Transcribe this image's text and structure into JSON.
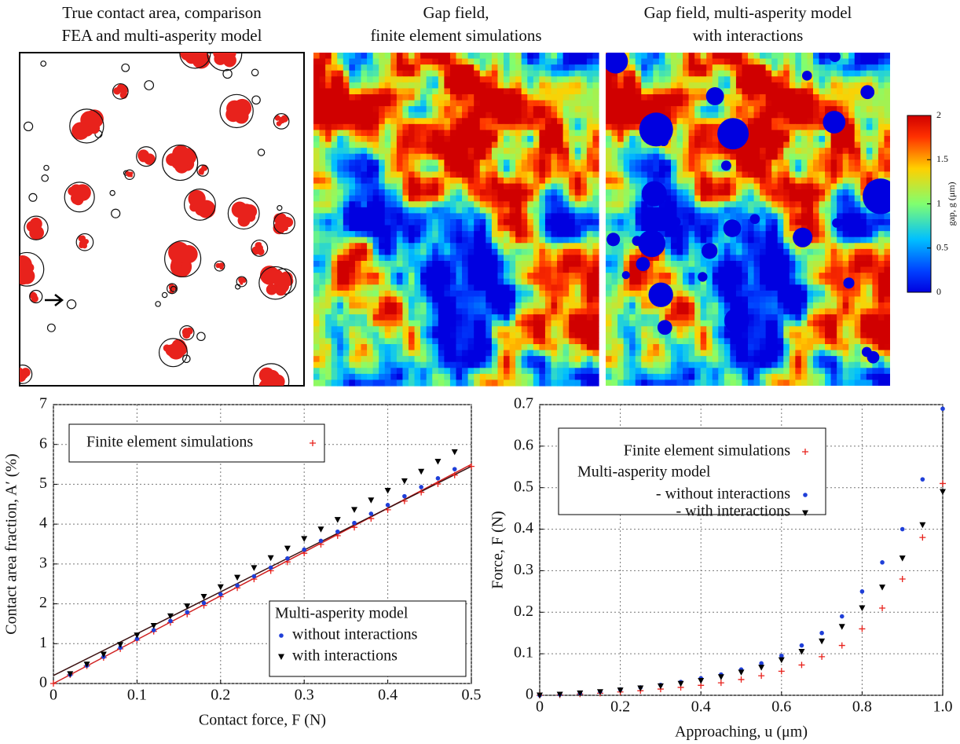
{
  "chart_data": [
    {
      "type": "contact-map",
      "title": [
        "True contact area, comparison",
        "FEA and multi-asperity model"
      ]
    },
    {
      "type": "heatmap",
      "title": [
        "Gap field,",
        "finite element simulations"
      ]
    },
    {
      "type": "heatmap",
      "title": [
        "Gap field, multi-asperity model",
        "with interactions"
      ],
      "discs": true
    },
    {
      "type": "colorbar",
      "ylabel": "gap, g (μm)",
      "ylim": [
        0,
        2
      ],
      "yticks": [
        0,
        0.5,
        1,
        1.5,
        2
      ]
    },
    {
      "type": "scatter",
      "xlabel": "Contact force, F (N)",
      "ylabel": "Contact area fraction, A′ (%)",
      "xlim": [
        0,
        0.5
      ],
      "xticks": [
        0,
        0.1,
        0.2,
        0.3,
        0.4,
        0.5
      ],
      "ylim": [
        0,
        7
      ],
      "yticks": [
        0,
        1,
        2,
        3,
        4,
        5,
        6,
        7
      ],
      "grid": true,
      "legend_title": "Multi-asperity model",
      "series": [
        {
          "marker": "line",
          "color": "#d02020",
          "x": [
            0,
            0.5
          ],
          "values": [
            0,
            5.5
          ]
        },
        {
          "marker": "line",
          "color": "#3a1010",
          "x": [
            0,
            0.5
          ],
          "values": [
            0.2,
            5.45
          ]
        },
        {
          "name": "Finite element simulations",
          "marker": "plus",
          "color": "#e8221c",
          "legend": "upper left",
          "x": [
            0,
            0.02,
            0.04,
            0.06,
            0.08,
            0.1,
            0.12,
            0.14,
            0.16,
            0.18,
            0.2,
            0.22,
            0.24,
            0.26,
            0.28,
            0.3,
            0.32,
            0.34,
            0.36,
            0.38,
            0.4,
            0.42,
            0.44,
            0.46,
            0.48,
            0.5
          ],
          "values": [
            0,
            0.22,
            0.44,
            0.65,
            0.87,
            1.09,
            1.31,
            1.53,
            1.74,
            1.96,
            2.18,
            2.4,
            2.62,
            2.83,
            3.05,
            3.27,
            3.49,
            3.71,
            3.92,
            4.14,
            4.36,
            4.58,
            4.8,
            5.01,
            5.23,
            5.45
          ]
        },
        {
          "name": "without interactions",
          "marker": "dot",
          "color": "#1f3fd8",
          "legend": "lower right",
          "x": [
            0.02,
            0.04,
            0.06,
            0.08,
            0.1,
            0.12,
            0.14,
            0.16,
            0.18,
            0.2,
            0.22,
            0.24,
            0.26,
            0.28,
            0.3,
            0.32,
            0.34,
            0.36,
            0.38,
            0.4,
            0.42,
            0.44,
            0.46,
            0.48
          ],
          "values": [
            0.22,
            0.45,
            0.67,
            0.9,
            1.12,
            1.34,
            1.57,
            1.79,
            2.02,
            2.24,
            2.46,
            2.69,
            2.91,
            3.14,
            3.36,
            3.58,
            3.81,
            4.03,
            4.26,
            4.48,
            4.7,
            4.93,
            5.15,
            5.38
          ]
        },
        {
          "name": "with interactions",
          "marker": "triangle",
          "color": "#000000",
          "legend": "lower right",
          "x": [
            0.02,
            0.04,
            0.06,
            0.08,
            0.1,
            0.12,
            0.14,
            0.16,
            0.18,
            0.2,
            0.22,
            0.24,
            0.26,
            0.28,
            0.3,
            0.32,
            0.34,
            0.36,
            0.38,
            0.4,
            0.42,
            0.44,
            0.46,
            0.48
          ],
          "values": [
            0.24,
            0.48,
            0.73,
            0.97,
            1.21,
            1.45,
            1.69,
            1.94,
            2.18,
            2.42,
            2.66,
            2.9,
            3.15,
            3.39,
            3.63,
            3.87,
            4.11,
            4.36,
            4.6,
            4.84,
            5.08,
            5.32,
            5.57,
            5.81
          ]
        }
      ]
    },
    {
      "type": "scatter",
      "xlabel": "Approaching, u (μm)",
      "ylabel": "Force, F (N)",
      "xlim": [
        0,
        1
      ],
      "xticks": [
        0,
        0.2,
        0.4,
        0.6,
        0.8,
        {
          "value": 1,
          "label": "1.0"
        }
      ],
      "ylim": [
        0,
        0.7
      ],
      "yticks": [
        0,
        0.1,
        0.2,
        0.3,
        0.4,
        0.5,
        0.6,
        0.7
      ],
      "grid": true,
      "legend_title": "Multi-asperity model",
      "series": [
        {
          "name": "Finite element simulations",
          "marker": "plus",
          "color": "#e8221c",
          "legend": "upper left",
          "x": [
            0,
            0.05,
            0.1,
            0.15,
            0.2,
            0.25,
            0.3,
            0.35,
            0.4,
            0.45,
            0.5,
            0.55,
            0.6,
            0.65,
            0.7,
            0.75,
            0.8,
            0.85,
            0.9,
            0.95,
            1
          ],
          "values": [
            0,
            0.001,
            0.003,
            0.005,
            0.008,
            0.011,
            0.015,
            0.019,
            0.024,
            0.03,
            0.038,
            0.047,
            0.058,
            0.073,
            0.093,
            0.12,
            0.16,
            0.21,
            0.28,
            0.38,
            0.51
          ]
        },
        {
          "name": "- without interactions",
          "marker": "dot",
          "color": "#1f3fd8",
          "legend": "upper left",
          "x": [
            0,
            0.05,
            0.1,
            0.15,
            0.2,
            0.25,
            0.3,
            0.35,
            0.4,
            0.45,
            0.5,
            0.55,
            0.6,
            0.65,
            0.7,
            0.75,
            0.8,
            0.85,
            0.9,
            0.95,
            1
          ],
          "values": [
            0,
            0.002,
            0.005,
            0.009,
            0.014,
            0.019,
            0.025,
            0.032,
            0.041,
            0.05,
            0.062,
            0.077,
            0.095,
            0.12,
            0.15,
            0.19,
            0.25,
            0.32,
            0.4,
            0.52,
            0.69
          ]
        },
        {
          "name": "- with interactions",
          "marker": "triangle",
          "color": "#000000",
          "legend": "upper left",
          "x": [
            0,
            0.05,
            0.1,
            0.15,
            0.2,
            0.25,
            0.3,
            0.35,
            0.4,
            0.45,
            0.5,
            0.55,
            0.6,
            0.65,
            0.7,
            0.75,
            0.8,
            0.85,
            0.9,
            0.95,
            1
          ],
          "values": [
            0,
            0.002,
            0.005,
            0.008,
            0.012,
            0.017,
            0.022,
            0.028,
            0.035,
            0.044,
            0.055,
            0.067,
            0.085,
            0.105,
            0.13,
            0.165,
            0.21,
            0.26,
            0.33,
            0.41,
            0.49
          ]
        }
      ]
    }
  ]
}
